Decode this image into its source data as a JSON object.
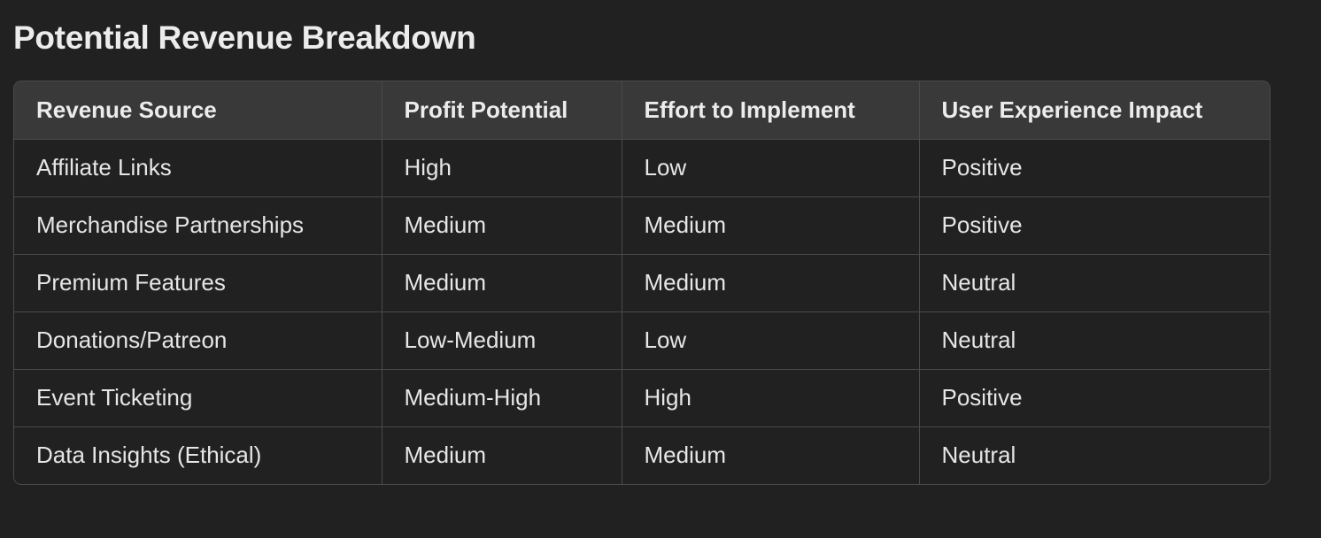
{
  "page": {
    "title": "Potential Revenue Breakdown"
  },
  "table": {
    "headers": [
      "Revenue Source",
      "Profit Potential",
      "Effort to Implement",
      "User Experience Impact"
    ],
    "rows": [
      [
        "Affiliate Links",
        "High",
        "Low",
        "Positive"
      ],
      [
        "Merchandise Partnerships",
        "Medium",
        "Medium",
        "Positive"
      ],
      [
        "Premium Features",
        "Medium",
        "Medium",
        "Neutral"
      ],
      [
        "Donations/Patreon",
        "Low-Medium",
        "Low",
        "Neutral"
      ],
      [
        "Event Ticketing",
        "Medium-High",
        "High",
        "Positive"
      ],
      [
        "Data Insights (Ethical)",
        "Medium",
        "Medium",
        "Neutral"
      ]
    ]
  },
  "colors": {
    "background": "#212121",
    "header_background": "#393939",
    "border": "#4a4a4a",
    "text": "#ececec"
  }
}
